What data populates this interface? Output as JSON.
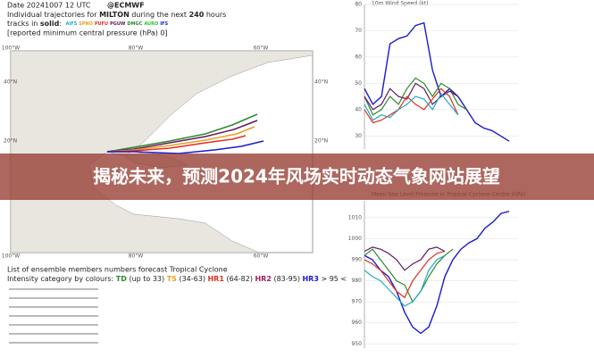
{
  "header": {
    "date": "Date 20241007 12 UTC",
    "source": "@ECMWF",
    "line2": [
      "Individual trajectories for ",
      "MILTON",
      " during the next ",
      "240",
      " hours"
    ],
    "line3": [
      "tracks in ",
      "solid",
      ": "
    ],
    "models": [
      {
        "name": "AIFS",
        "color": "#20a8c8"
      },
      {
        "name": "SPNO",
        "color": "#e8a020"
      },
      {
        "name": "PUFU",
        "color": "#e03020"
      },
      {
        "name": "PGUW",
        "color": "#601a60"
      },
      {
        "name": "DMGC",
        "color": "#2a8a2a"
      },
      {
        "name": "AURO",
        "color": "#30c030"
      },
      {
        "name": "IFS",
        "color": "#1a1ad0"
      }
    ],
    "line4": "[reported minimum central pressure (hPa) 0]"
  },
  "map": {
    "top_labels": [
      "100°W",
      "80°W",
      "60°W"
    ],
    "left_labels": [
      "40°N",
      "20°N"
    ],
    "right_labels": [
      "40°N",
      "20°N"
    ],
    "bottom_labels": [
      "100°W",
      "80°W",
      "60°W"
    ]
  },
  "list": {
    "title": "List of ensemble members numbers forecast Tropical Cyclone",
    "intensity": [
      "Intensity category by colours: ",
      "TD",
      " (up to 33) ",
      "TS",
      " (34-63) ",
      "HR1",
      " (64-82) ",
      "HR2",
      " (83-95) ",
      "HR3",
      " > 95 <"
    ]
  },
  "banner": "揭秘未来，预测2024年风场实时动态气象网站展望",
  "chart_data": [
    {
      "type": "line",
      "title": "10m Wind Speed (kt)",
      "ylim": [
        25,
        80
      ],
      "yticks": [
        30,
        40,
        50,
        60,
        70,
        80
      ],
      "series": [
        {
          "color": "#1a1ad0",
          "values": [
            48,
            42,
            45,
            65,
            67,
            68,
            72,
            73,
            55,
            45,
            48,
            45,
            40,
            35,
            33,
            32,
            30,
            28
          ]
        },
        {
          "color": "#2a8a2a",
          "values": [
            45,
            38,
            40,
            45,
            42,
            48,
            52,
            50,
            45,
            50,
            48,
            42,
            40
          ]
        },
        {
          "color": "#601a60",
          "values": [
            45,
            40,
            42,
            48,
            45,
            44,
            50,
            48,
            42,
            45,
            47,
            45
          ]
        },
        {
          "color": "#e03020",
          "values": [
            40,
            35,
            36,
            38,
            40,
            45,
            42,
            40,
            44,
            48,
            45,
            38
          ]
        },
        {
          "color": "#20a8c8",
          "values": [
            42,
            36,
            38,
            37,
            40,
            42,
            45,
            44,
            40,
            46,
            42,
            38
          ]
        }
      ]
    },
    {
      "type": "line",
      "title": "Mean Sea Level Pressure in Tropical Cyclone Centre (hPa)",
      "ylim": [
        948,
        1018
      ],
      "yticks": [
        950,
        960,
        970,
        980,
        990,
        1000,
        1010
      ],
      "series": [
        {
          "color": "#1a1ad0",
          "values": [
            992,
            990,
            985,
            982,
            975,
            965,
            958,
            955,
            958,
            968,
            982,
            990,
            995,
            998,
            1000,
            1005,
            1008,
            1012,
            1013
          ]
        },
        {
          "color": "#2a8a2a",
          "values": [
            992,
            995,
            990,
            985,
            980,
            978,
            970,
            975,
            982,
            988,
            992,
            995
          ]
        },
        {
          "color": "#e03020",
          "values": [
            990,
            988,
            985,
            980,
            975,
            972,
            980,
            985,
            990,
            993,
            994
          ]
        },
        {
          "color": "#601a60",
          "values": [
            994,
            996,
            995,
            993,
            990,
            985,
            988,
            990,
            995,
            996,
            994
          ]
        },
        {
          "color": "#20a8c8",
          "values": [
            985,
            982,
            980,
            976,
            972,
            968,
            970,
            975,
            985,
            990,
            992
          ]
        }
      ]
    }
  ]
}
